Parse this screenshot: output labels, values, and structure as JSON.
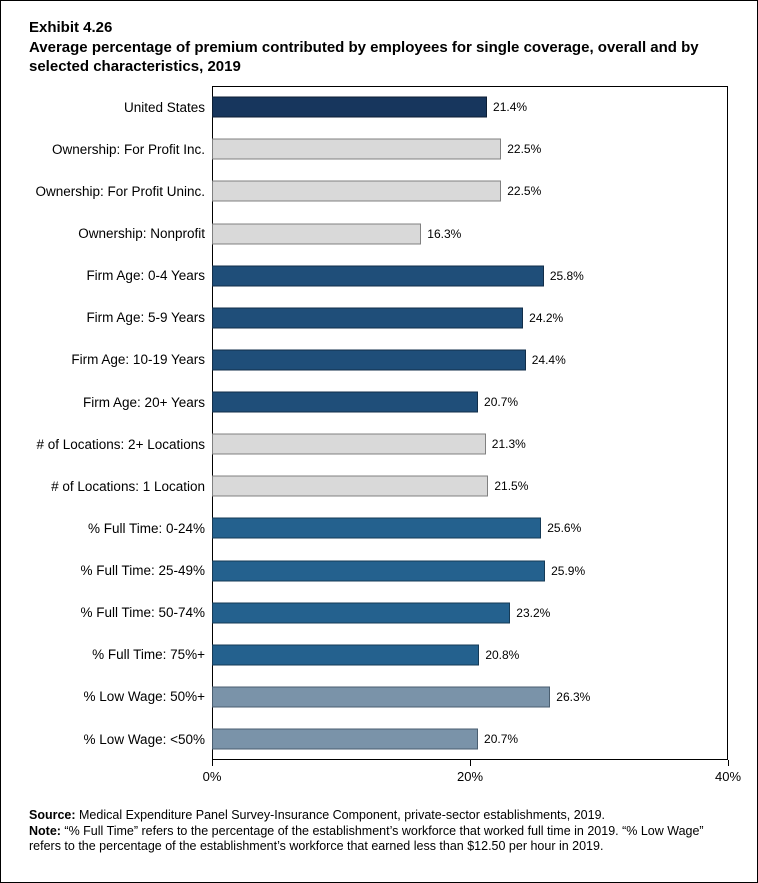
{
  "title": {
    "exhibit": "Exhibit 4.26",
    "text": "Average percentage of premium contributed by employees for single coverage, overall and by selected characteristics, 2019"
  },
  "chart_data": {
    "type": "bar",
    "orientation": "horizontal",
    "xlim": [
      0,
      40
    ],
    "x_ticks": [
      "0%",
      "20%",
      "40%"
    ],
    "x_tick_values": [
      0,
      20,
      40
    ],
    "grid": false,
    "legend": false,
    "colors": {
      "us": {
        "fill": "#17365D",
        "border": "#0C1E34"
      },
      "ownership": {
        "fill": "#D9D9D9",
        "border": "#808080"
      },
      "firm_age": {
        "fill": "#1F4E79",
        "border": "#122E49"
      },
      "locations": {
        "fill": "#D9D9D9",
        "border": "#808080"
      },
      "full_time": {
        "fill": "#24618E",
        "border": "#153A56"
      },
      "low_wage": {
        "fill": "#7A93A9",
        "border": "#4A5E70"
      }
    },
    "bars": [
      {
        "label": "United States",
        "value": 21.4,
        "display": "21.4%",
        "group": "us"
      },
      {
        "label": "Ownership: For Profit Inc.",
        "value": 22.5,
        "display": "22.5%",
        "group": "ownership"
      },
      {
        "label": "Ownership: For Profit Uninc.",
        "value": 22.5,
        "display": "22.5%",
        "group": "ownership"
      },
      {
        "label": "Ownership: Nonprofit",
        "value": 16.3,
        "display": "16.3%",
        "group": "ownership"
      },
      {
        "label": "Firm Age: 0-4 Years",
        "value": 25.8,
        "display": "25.8%",
        "group": "firm_age"
      },
      {
        "label": "Firm Age: 5-9 Years",
        "value": 24.2,
        "display": "24.2%",
        "group": "firm_age"
      },
      {
        "label": "Firm Age: 10-19 Years",
        "value": 24.4,
        "display": "24.4%",
        "group": "firm_age"
      },
      {
        "label": "Firm Age: 20+ Years",
        "value": 20.7,
        "display": "20.7%",
        "group": "firm_age"
      },
      {
        "label": "# of Locations: 2+ Locations",
        "value": 21.3,
        "display": "21.3%",
        "group": "locations"
      },
      {
        "label": "# of Locations: 1 Location",
        "value": 21.5,
        "display": "21.5%",
        "group": "locations"
      },
      {
        "label": "% Full Time: 0-24%",
        "value": 25.6,
        "display": "25.6%",
        "group": "full_time"
      },
      {
        "label": "% Full Time: 25-49%",
        "value": 25.9,
        "display": "25.9%",
        "group": "full_time"
      },
      {
        "label": "% Full Time: 50-74%",
        "value": 23.2,
        "display": "23.2%",
        "group": "full_time"
      },
      {
        "label": "% Full Time: 75%+",
        "value": 20.8,
        "display": "20.8%",
        "group": "full_time"
      },
      {
        "label": "% Low Wage: 50%+",
        "value": 26.3,
        "display": "26.3%",
        "group": "low_wage"
      },
      {
        "label": "% Low Wage: <50%",
        "value": 20.7,
        "display": "20.7%",
        "group": "low_wage"
      }
    ]
  },
  "footer": {
    "source_label": "Source:",
    "source_text": " Medical Expenditure Panel Survey-Insurance Component, private-sector establishments, 2019.",
    "note_label": "Note:",
    "note_text": " “% Full Time” refers to the percentage of the establishment’s workforce that worked full time in 2019. “% Low Wage” refers to the percentage of the establishment’s workforce that earned less than $12.50 per hour in 2019."
  }
}
